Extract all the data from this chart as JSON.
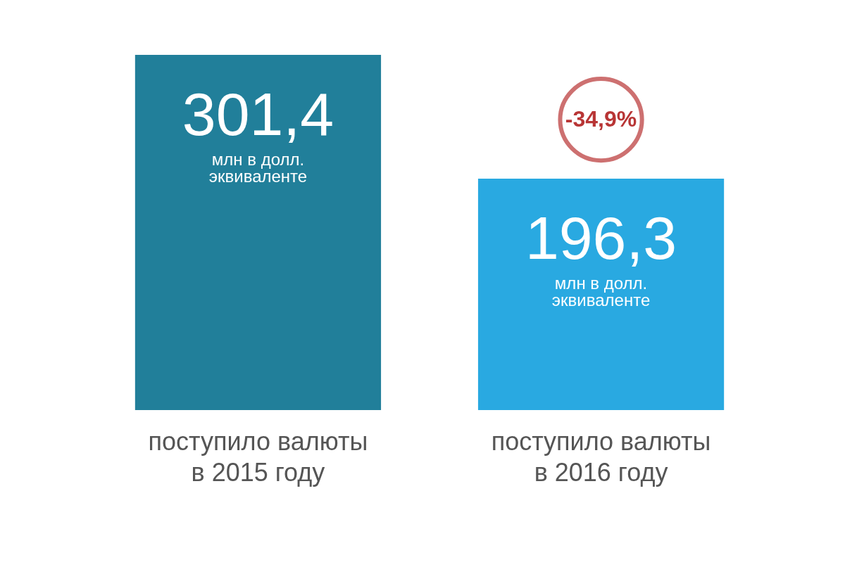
{
  "chart_data": {
    "type": "bar",
    "categories": [
      "поступило валюты\nв 2015 году",
      "поступило валюты\nв 2016 году"
    ],
    "values": [
      301.4,
      196.3
    ],
    "colors": [
      "#217f9a",
      "#29a9e1"
    ],
    "value_labels": [
      "301,4",
      "196,3"
    ],
    "annotations": [
      "млн в долл.\nэквиваленте",
      "млн в долл.\nэквиваленте",
      "-34,9%"
    ],
    "grid": false
  }
}
